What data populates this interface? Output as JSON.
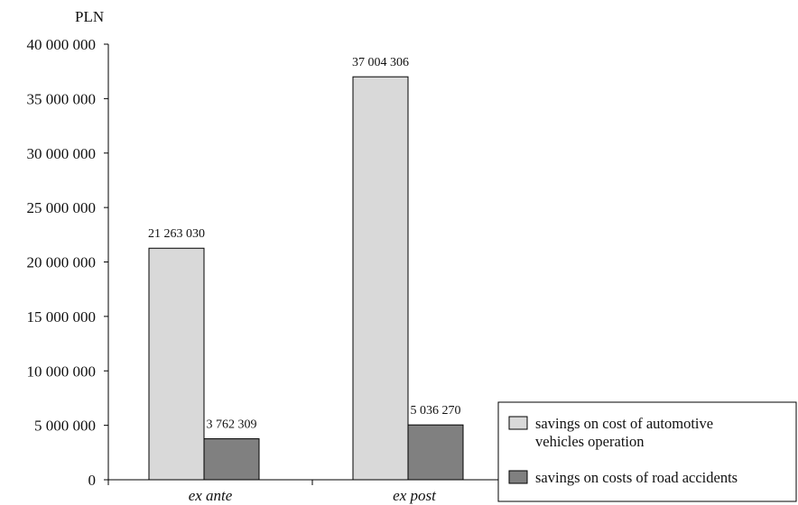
{
  "chart_data": {
    "type": "bar",
    "unit_label": "PLN",
    "categories": [
      "ex ante",
      "ex post"
    ],
    "series": [
      {
        "name": "savings on cost of automotive vehicles operation",
        "legend_lines": [
          "savings on cost of automotive",
          "vehicles operation"
        ],
        "values": [
          21263030,
          37004306
        ],
        "value_labels": [
          "21 263 030",
          "37 004 306"
        ],
        "color": "#d9d9d9"
      },
      {
        "name": "savings on costs of road accidents",
        "legend_lines": [
          "savings on costs of road accidents"
        ],
        "values": [
          3762309,
          5036270
        ],
        "value_labels": [
          "3 762 309",
          "5 036 270"
        ],
        "color": "#808080"
      }
    ],
    "ylim": [
      0,
      40000000
    ],
    "yticks": [
      0,
      5000000,
      10000000,
      15000000,
      20000000,
      25000000,
      30000000,
      35000000,
      40000000
    ],
    "ytick_labels": [
      "0",
      "5 000 000",
      "10 000 000",
      "15 000 000",
      "20 000 000",
      "25 000 000",
      "30 000 000",
      "35 000 000",
      "40 000 000"
    ],
    "grid": false,
    "legend_position": "bottom-right"
  }
}
